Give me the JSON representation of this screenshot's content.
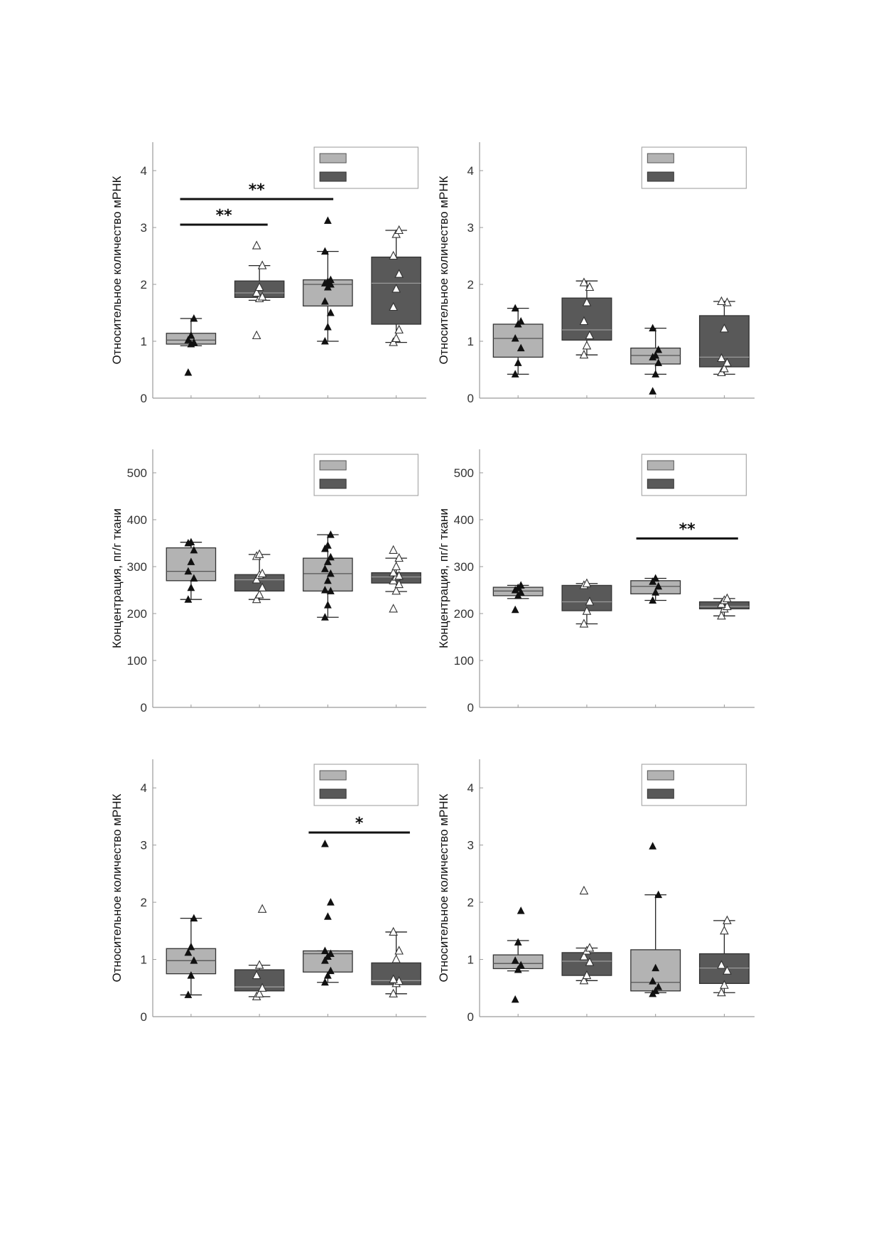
{
  "colors": {
    "light": "#b3b3b3",
    "dark": "#595959"
  },
  "chart_data": [
    {
      "type": "box",
      "ylabel": "Относительное количество мРНК",
      "ylim": [
        0,
        4.5
      ],
      "yticks": [
        0,
        1,
        2,
        3,
        4
      ],
      "groups": 2,
      "legend_position": "top-right",
      "series": [
        {
          "color": "light",
          "marker": "filled",
          "boxes": [
            {
              "min": 0.92,
              "q1": 0.95,
              "median": 1.02,
              "q3": 1.14,
              "max": 1.4,
              "points": [
                0.45,
                0.95,
                0.98,
                1.02,
                1.1,
                1.4
              ]
            },
            {
              "min": 1.0,
              "q1": 1.62,
              "median": 2.0,
              "q3": 2.08,
              "max": 2.58,
              "points": [
                1.0,
                1.25,
                1.5,
                1.7,
                1.95,
                2.0,
                2.02,
                2.05,
                2.08,
                2.58,
                3.12
              ]
            }
          ]
        },
        {
          "color": "dark",
          "marker": "open",
          "boxes": [
            {
              "min": 1.72,
              "q1": 1.77,
              "median": 1.85,
              "q3": 2.06,
              "max": 2.33,
              "points": [
                1.1,
                1.75,
                1.78,
                1.85,
                1.95,
                2.33,
                2.68
              ]
            },
            {
              "min": 0.98,
              "q1": 1.3,
              "median": 2.02,
              "q3": 2.48,
              "max": 2.95,
              "points": [
                0.98,
                1.05,
                1.2,
                1.6,
                1.92,
                2.18,
                2.5,
                2.88,
                2.95
              ]
            }
          ]
        }
      ],
      "significance": [
        {
          "from": 0,
          "to": 1,
          "y": 3.05,
          "label": "**"
        },
        {
          "from": 0,
          "to": 2,
          "y": 3.5,
          "label": "**"
        }
      ]
    },
    {
      "type": "box",
      "ylabel": "Относительное количество мРНК",
      "ylim": [
        0,
        4.5
      ],
      "yticks": [
        0,
        1,
        2,
        3,
        4
      ],
      "groups": 2,
      "legend_position": "top-right",
      "series": [
        {
          "color": "light",
          "marker": "filled",
          "boxes": [
            {
              "min": 0.42,
              "q1": 0.72,
              "median": 1.05,
              "q3": 1.3,
              "max": 1.58,
              "points": [
                0.42,
                0.62,
                0.88,
                1.05,
                1.3,
                1.35,
                1.58
              ]
            },
            {
              "min": 0.42,
              "q1": 0.6,
              "median": 0.75,
              "q3": 0.88,
              "max": 1.23,
              "points": [
                0.12,
                0.42,
                0.62,
                0.72,
                0.75,
                0.85,
                1.23
              ]
            }
          ]
        },
        {
          "color": "dark",
          "marker": "open",
          "boxes": [
            {
              "min": 0.76,
              "q1": 1.02,
              "median": 1.2,
              "q3": 1.76,
              "max": 2.06,
              "points": [
                0.76,
                0.92,
                1.1,
                1.35,
                1.68,
                1.95,
                2.03
              ]
            },
            {
              "min": 0.42,
              "q1": 0.55,
              "median": 0.72,
              "q3": 1.45,
              "max": 1.7,
              "points": [
                0.45,
                0.52,
                0.62,
                0.7,
                1.22,
                1.68,
                1.7
              ]
            }
          ]
        }
      ],
      "significance": []
    },
    {
      "type": "box",
      "ylabel": "Концентрация, пг/г ткани",
      "ylim": [
        0,
        550
      ],
      "yticks": [
        0,
        100,
        200,
        300,
        400,
        500
      ],
      "groups": 2,
      "legend_position": "top-right",
      "series": [
        {
          "color": "light",
          "marker": "filled",
          "boxes": [
            {
              "min": 230,
              "q1": 270,
              "median": 290,
              "q3": 340,
              "max": 352,
              "points": [
                230,
                255,
                275,
                290,
                310,
                335,
                350,
                352
              ]
            },
            {
              "min": 192,
              "q1": 248,
              "median": 285,
              "q3": 318,
              "max": 368,
              "points": [
                192,
                218,
                248,
                250,
                270,
                285,
                295,
                310,
                320,
                338,
                345,
                368
              ]
            }
          ]
        },
        {
          "color": "dark",
          "marker": "open",
          "boxes": [
            {
              "min": 230,
              "q1": 248,
              "median": 272,
              "q3": 283,
              "max": 326,
              "points": [
                230,
                240,
                255,
                272,
                282,
                285,
                322,
                326
              ]
            },
            {
              "min": 247,
              "q1": 265,
              "median": 278,
              "q3": 287,
              "max": 318,
              "points": [
                210,
                248,
                262,
                270,
                278,
                280,
                287,
                300,
                318,
                335
              ]
            }
          ]
        }
      ],
      "significance": []
    },
    {
      "type": "box",
      "ylabel": "Концентрация, пг/г ткани",
      "ylim": [
        0,
        550
      ],
      "yticks": [
        0,
        100,
        200,
        300,
        400,
        500
      ],
      "groups": 2,
      "legend_position": "top-right",
      "series": [
        {
          "color": "light",
          "marker": "filled",
          "boxes": [
            {
              "min": 232,
              "q1": 238,
              "median": 248,
              "q3": 256,
              "max": 260,
              "points": [
                208,
                238,
                245,
                250,
                255,
                260
              ]
            },
            {
              "min": 228,
              "q1": 242,
              "median": 258,
              "q3": 270,
              "max": 275,
              "points": [
                228,
                245,
                258,
                268,
                275
              ]
            }
          ]
        },
        {
          "color": "dark",
          "marker": "open",
          "boxes": [
            {
              "min": 178,
              "q1": 206,
              "median": 225,
              "q3": 260,
              "max": 264,
              "points": [
                178,
                205,
                225,
                260,
                264
              ]
            },
            {
              "min": 195,
              "q1": 210,
              "median": 215,
              "q3": 225,
              "max": 232,
              "points": [
                195,
                210,
                215,
                220,
                228,
                232
              ]
            }
          ]
        }
      ],
      "significance": [
        {
          "from": 3,
          "to": 4,
          "y": 360,
          "label": "**"
        }
      ]
    },
    {
      "type": "box",
      "ylabel": "Относительное количество мРНК",
      "ylim": [
        0,
        4.5
      ],
      "yticks": [
        0,
        1,
        2,
        3,
        4
      ],
      "groups": 2,
      "legend_position": "top-right",
      "series": [
        {
          "color": "light",
          "marker": "filled",
          "boxes": [
            {
              "min": 0.38,
              "q1": 0.75,
              "median": 0.98,
              "q3": 1.19,
              "max": 1.72,
              "points": [
                0.38,
                0.72,
                0.98,
                1.12,
                1.22,
                1.72
              ]
            },
            {
              "min": 0.6,
              "q1": 0.78,
              "median": 1.1,
              "q3": 1.15,
              "max": 1.15,
              "points": [
                0.6,
                0.72,
                0.8,
                0.98,
                1.05,
                1.1,
                1.15,
                1.75,
                2.0,
                3.02
              ]
            }
          ]
        },
        {
          "color": "dark",
          "marker": "open",
          "boxes": [
            {
              "min": 0.35,
              "q1": 0.45,
              "median": 0.52,
              "q3": 0.82,
              "max": 0.9,
              "points": [
                0.35,
                0.4,
                0.5,
                0.72,
                0.9,
                1.88
              ]
            },
            {
              "min": 0.4,
              "q1": 0.56,
              "median": 0.63,
              "q3": 0.94,
              "max": 1.48,
              "points": [
                0.4,
                0.58,
                0.62,
                0.65,
                1.0,
                1.15,
                1.48
              ]
            }
          ]
        }
      ],
      "significance": [
        {
          "from": 3,
          "to": 4,
          "y": 3.22,
          "label": "*"
        }
      ]
    },
    {
      "type": "box",
      "ylabel": "Относительное количество мРНК",
      "ylim": [
        0,
        4.5
      ],
      "yticks": [
        0,
        1,
        2,
        3,
        4
      ],
      "groups": 2,
      "legend_position": "top-right",
      "series": [
        {
          "color": "light",
          "marker": "filled",
          "boxes": [
            {
              "min": 0.8,
              "q1": 0.84,
              "median": 0.93,
              "q3": 1.08,
              "max": 1.33,
              "points": [
                0.3,
                0.82,
                0.9,
                0.98,
                1.3,
                1.85
              ]
            },
            {
              "min": 0.42,
              "q1": 0.45,
              "median": 0.6,
              "q3": 1.17,
              "max": 2.13,
              "points": [
                0.4,
                0.45,
                0.52,
                0.62,
                0.85,
                2.13,
                2.98
              ]
            }
          ]
        },
        {
          "color": "dark",
          "marker": "open",
          "boxes": [
            {
              "min": 0.63,
              "q1": 0.72,
              "median": 0.97,
              "q3": 1.12,
              "max": 1.2,
              "points": [
                0.63,
                0.72,
                0.95,
                1.05,
                1.15,
                1.2,
                2.2
              ]
            },
            {
              "min": 0.42,
              "q1": 0.58,
              "median": 0.85,
              "q3": 1.1,
              "max": 1.68,
              "points": [
                0.42,
                0.55,
                0.8,
                0.9,
                1.5,
                1.68
              ]
            }
          ]
        }
      ],
      "significance": []
    }
  ]
}
